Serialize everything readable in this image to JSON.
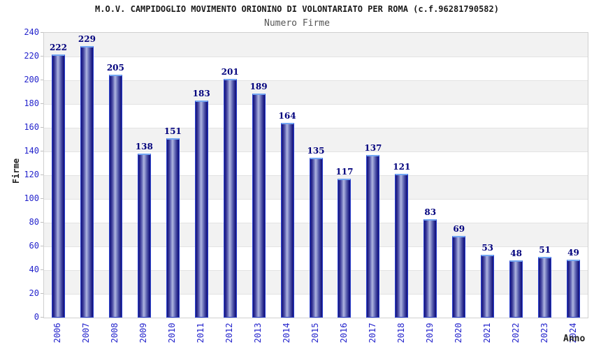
{
  "header": {
    "title": "M.O.V. CAMPIDOGLIO MOVIMENTO ORIONINO DI VOLONTARIATO PER ROMA (c.f.96281790582)",
    "subtitle": "Numero Firme"
  },
  "chart_data": {
    "type": "bar",
    "title": "M.O.V. CAMPIDOGLIO MOVIMENTO ORIONINO DI VOLONTARIATO PER ROMA (c.f.96281790582)",
    "subtitle": "Numero Firme",
    "xlabel": "Anno",
    "ylabel": "Firme",
    "categories": [
      "2006",
      "2007",
      "2008",
      "2009",
      "2010",
      "2011",
      "2012",
      "2013",
      "2014",
      "2015",
      "2016",
      "2017",
      "2018",
      "2019",
      "2020",
      "2021",
      "2022",
      "2023",
      "2024"
    ],
    "values": [
      222,
      229,
      205,
      138,
      151,
      183,
      201,
      189,
      164,
      135,
      117,
      137,
      121,
      83,
      69,
      53,
      48,
      51,
      49
    ],
    "ylim": [
      0,
      240
    ],
    "ytick_step": 20,
    "grid": true,
    "legend": false,
    "plot_background": "alternating horizontal bands"
  },
  "colors": {
    "bar_border": "#2b41cf",
    "bar_top_highlight": "#74a7f3",
    "bar_dark": "#151580",
    "bar_light": "#b0b5e0",
    "value_label": "#00007d",
    "tick_label": "#2424cc",
    "band_gray": "#f2f2f2",
    "band_white": "#ffffff",
    "gridline": "#e3e3e3",
    "plot_border": "#d0d0d0",
    "title_color": "#1a1a1a",
    "subtitle_color": "#555555",
    "axis_title_color": "#222222"
  }
}
